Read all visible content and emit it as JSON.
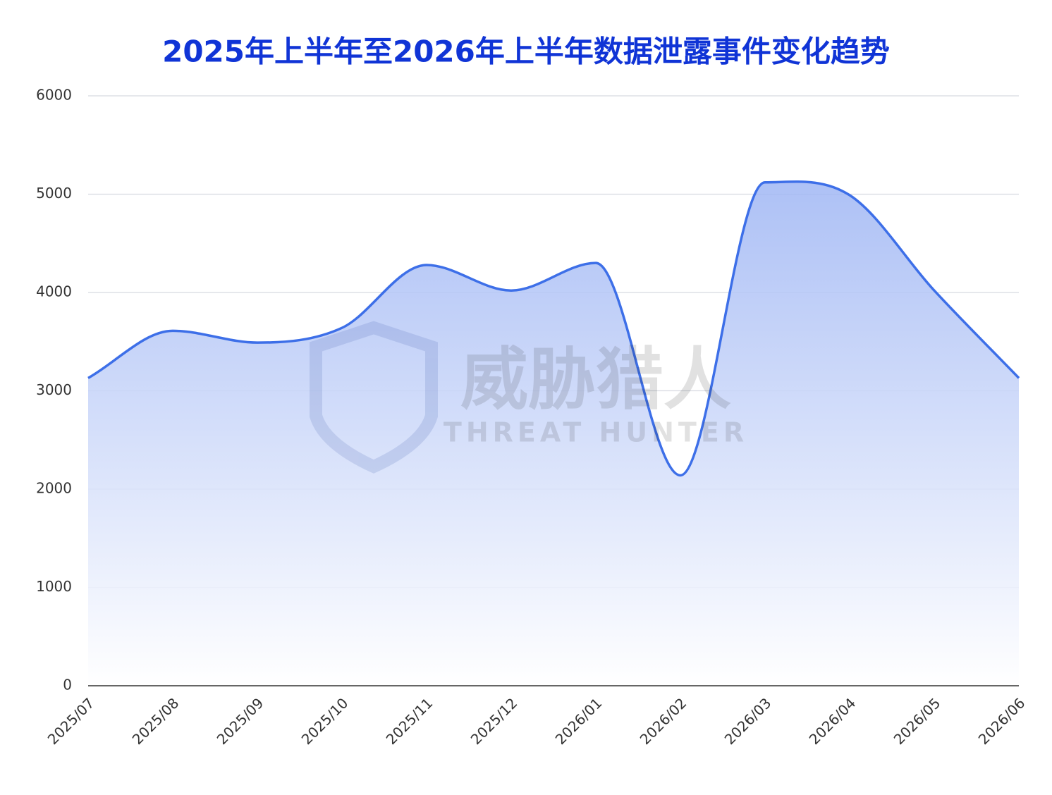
{
  "chart_data": {
    "type": "area",
    "title": "2025年上半年至2026年上半年数据泄露事件变化趋势",
    "watermark": {
      "text": "威胁猎人",
      "subtext": "THREAT HUNTER"
    },
    "categories": [
      "2025/07",
      "2025/08",
      "2025/09",
      "2025/10",
      "2025/11",
      "2025/12",
      "2026/01",
      "2026/02",
      "2026/03",
      "2026/04",
      "2026/05",
      "2026/06"
    ],
    "values": [
      3130,
      3610,
      3490,
      3640,
      4280,
      4020,
      4300,
      2140,
      5120,
      4990,
      4020,
      3130
    ],
    "color": "#3d6fe8",
    "ylim": [
      0,
      6000
    ],
    "yticks": [
      0,
      1000,
      2000,
      3000,
      4000,
      5000,
      6000
    ],
    "grid": true
  }
}
